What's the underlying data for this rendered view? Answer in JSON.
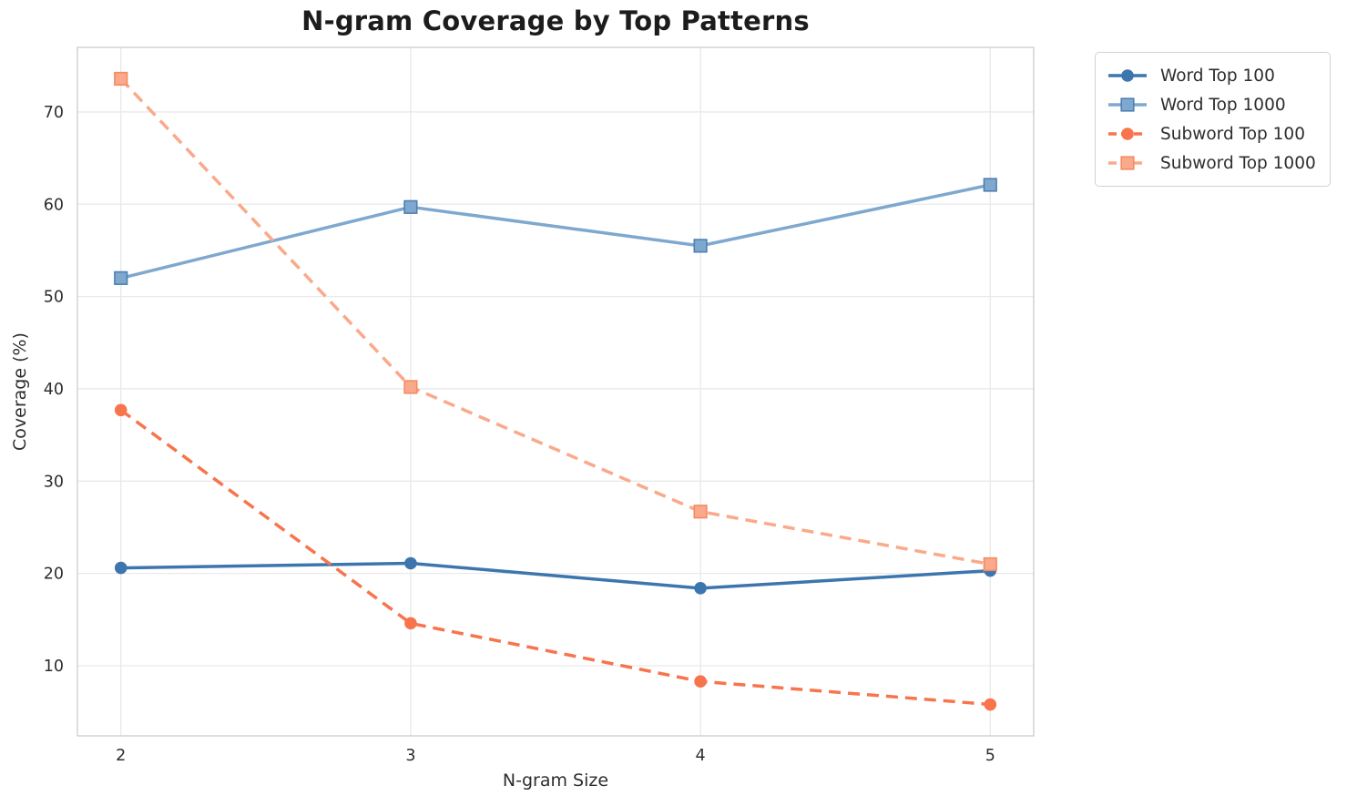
{
  "chart_data": {
    "type": "line",
    "title": "N-gram Coverage by Top Patterns",
    "xlabel": "N-gram Size",
    "ylabel": "Coverage (%)",
    "x": [
      2,
      3,
      4,
      5
    ],
    "xticks": [
      "2",
      "3",
      "4",
      "5"
    ],
    "yticks": [
      10,
      20,
      30,
      40,
      50,
      60,
      70
    ],
    "xlim": [
      1.85,
      5.15
    ],
    "ylim": [
      2.4,
      77.0
    ],
    "grid": true,
    "legend_position": "outside-upper-right",
    "series": [
      {
        "name": "Word Top 100",
        "values": [
          20.6,
          21.1,
          18.4,
          20.3
        ],
        "color": "#3d76ae",
        "marker": "circle",
        "marker_edge": "#3d76ae",
        "linestyle": "solid"
      },
      {
        "name": "Word Top 1000",
        "values": [
          52.0,
          59.7,
          55.5,
          62.1
        ],
        "color": "#7fa8cf",
        "marker": "square",
        "marker_edge": "#4d7fb2",
        "linestyle": "solid"
      },
      {
        "name": "Subword Top 100",
        "values": [
          37.7,
          14.6,
          8.3,
          5.8
        ],
        "color": "#f7744c",
        "marker": "circle",
        "marker_edge": "#f7744c",
        "linestyle": "dashed"
      },
      {
        "name": "Subword Top 1000",
        "values": [
          73.6,
          40.2,
          26.7,
          21.0
        ],
        "color": "#faa98a",
        "marker": "square",
        "marker_edge": "#f58a62",
        "linestyle": "dashed"
      }
    ],
    "style": {
      "grid_color": "#e9e9e9",
      "spine_color": "#cccccc",
      "text_color": "#2e2e2e",
      "title_color": "#1c1c1c",
      "background": "#ffffff"
    }
  }
}
